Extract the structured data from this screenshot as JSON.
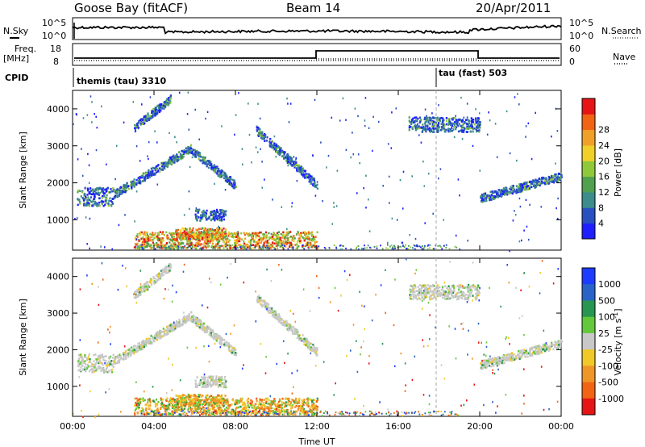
{
  "header": {
    "station": "Goose Bay (fitACF)",
    "beam": "Beam 14",
    "date": "20/Apr/2011"
  },
  "top_panels": {
    "nsky_label": "N.Sky",
    "nsearch_label": "N.Search",
    "noise_ticks": [
      "10^5",
      "10^0"
    ],
    "freq_label": "Freq.",
    "freq_unit": "[MHz]",
    "freq_ticks": [
      "18",
      "8"
    ],
    "nave_label": "Nave",
    "nave_ticks": [
      "60",
      "0"
    ],
    "cpid_label": "CPID",
    "cpid_segments": [
      {
        "name": "themis (tau) 3310",
        "start_hour": 0
      },
      {
        "name": "tau (fast) 503",
        "start_hour": 18
      }
    ]
  },
  "chart_data": [
    {
      "type": "heatmap",
      "quantity": "power",
      "xlabel": "Time UT",
      "ylabel": "Slant Range [km]",
      "colorbar_label": "Power [dB]",
      "x_ticks": [
        "00:00",
        "04:00",
        "08:00",
        "12:00",
        "16:00",
        "20:00",
        "00:00"
      ],
      "y_ticks": [
        1000,
        2000,
        3000,
        4000
      ],
      "xlim_hours": [
        0,
        24
      ],
      "ylim_km": [
        180,
        4500
      ],
      "colorbar_ticks": [
        4,
        8,
        12,
        16,
        20,
        24,
        28
      ],
      "colorbar_colors": [
        "#1e1eff",
        "#2850c0",
        "#3c8c8c",
        "#50a050",
        "#90c83c",
        "#f0d028",
        "#f0a028",
        "#f06414",
        "#e61414"
      ],
      "echo_regions": [
        {
          "t": [
            0.2,
            2.0
          ],
          "r": [
            1400,
            1900
          ]
        },
        {
          "t": [
            2.0,
            5.8
          ],
          "r": [
            1700,
            2950
          ]
        },
        {
          "t": [
            5.8,
            8.0
          ],
          "r": [
            2900,
            1950
          ]
        },
        {
          "t": [
            3.0,
            4.8
          ],
          "r": [
            3500,
            4300
          ]
        },
        {
          "t": [
            9.0,
            12.0
          ],
          "r": [
            3450,
            1950
          ]
        },
        {
          "t": [
            3.0,
            12.0
          ],
          "r": [
            250,
            700
          ]
        },
        {
          "t": [
            5.0,
            7.5
          ],
          "r": [
            500,
            800
          ]
        },
        {
          "t": [
            6.0,
            7.5
          ],
          "r": [
            1000,
            1300
          ]
        },
        {
          "t": [
            16.5,
            20.0
          ],
          "r": [
            3400,
            3800
          ]
        },
        {
          "t": [
            20.0,
            24.0
          ],
          "r": [
            1600,
            2200
          ]
        }
      ]
    },
    {
      "type": "heatmap",
      "quantity": "velocity",
      "xlabel": "Time UT",
      "ylabel": "Slant Range [km]",
      "colorbar_label": "Velocity [m s^-1]",
      "x_ticks": [
        "00:00",
        "04:00",
        "08:00",
        "12:00",
        "16:00",
        "20:00",
        "00:00"
      ],
      "y_ticks": [
        1000,
        2000,
        3000,
        4000
      ],
      "xlim_hours": [
        0,
        24
      ],
      "ylim_km": [
        180,
        4500
      ],
      "colorbar_ticks": [
        "1000",
        "500",
        "100",
        "25",
        "-25",
        "-100",
        "-500",
        "-1000"
      ],
      "colorbar_colors": [
        "#1e3cff",
        "#2864c8",
        "#289650",
        "#64c83c",
        "#c8c8c8",
        "#f0c828",
        "#f09628",
        "#f06414",
        "#e61414"
      ]
    }
  ]
}
